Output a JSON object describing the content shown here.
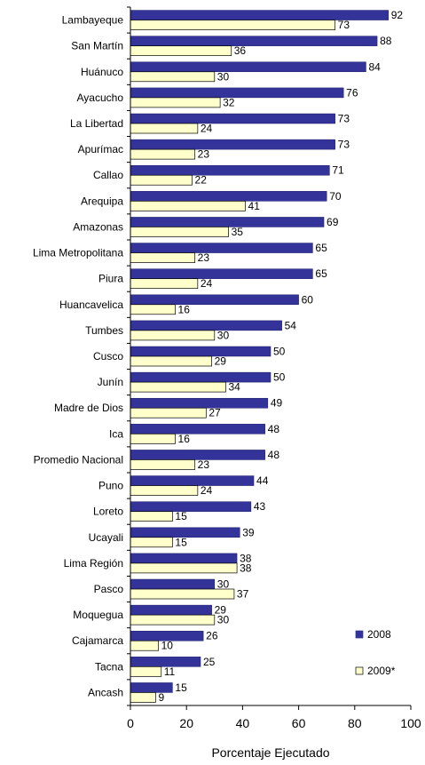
{
  "chart_data": {
    "type": "bar",
    "orientation": "horizontal",
    "categories": [
      "Lambayeque",
      "San Martín",
      "Huánuco",
      "Ayacucho",
      "La Libertad",
      "Apurímac",
      "Callao",
      "Arequipa",
      "Amazonas",
      "Lima Metropolitana",
      "Piura",
      "Huancavelica",
      "Tumbes",
      "Cusco",
      "Junín",
      "Madre de Dios",
      "Ica",
      "Promedio Nacional",
      "Puno",
      "Loreto",
      "Ucayali",
      "Lima Región",
      "Pasco",
      "Moquegua",
      "Cajamarca",
      "Tacna",
      "Ancash"
    ],
    "series": [
      {
        "name": "2008",
        "color": "#333399",
        "values": [
          92,
          88,
          84,
          76,
          73,
          73,
          71,
          70,
          69,
          65,
          65,
          60,
          54,
          50,
          50,
          49,
          48,
          48,
          44,
          43,
          39,
          38,
          30,
          29,
          26,
          25,
          15
        ]
      },
      {
        "name": "2009*",
        "color": "#FFFFCC",
        "values": [
          73,
          36,
          30,
          32,
          24,
          23,
          22,
          41,
          35,
          23,
          24,
          16,
          30,
          29,
          34,
          27,
          16,
          23,
          24,
          15,
          15,
          38,
          37,
          30,
          10,
          11,
          9
        ]
      }
    ],
    "xlabel": "Porcentaje Ejecutado",
    "ylabel": "",
    "xlim": [
      0,
      100
    ],
    "x_ticks": [
      0,
      20,
      40,
      60,
      80,
      100
    ],
    "grid": false,
    "legend_position": "bottom-right",
    "data_labels": true
  }
}
